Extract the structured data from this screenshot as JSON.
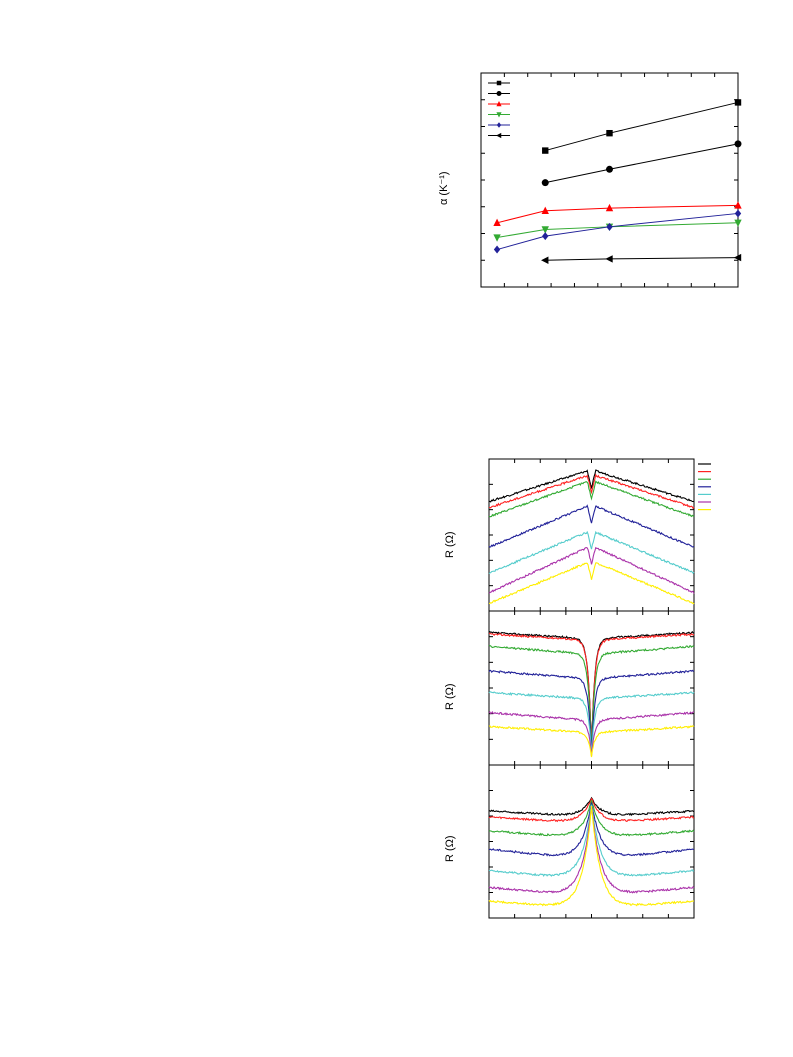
{
  "chart_data": [
    {
      "type": "line",
      "ylabel": "α (K⁻¹)",
      "xlim": [
        0,
        8
      ],
      "ylim": [
        0,
        8
      ],
      "grid": false,
      "legend": {
        "placement": "top-left"
      },
      "series": [
        {
          "marker": "square",
          "color": "#000000",
          "x": [
            2,
            4,
            8
          ],
          "y": [
            5.1,
            5.75,
            6.9
          ]
        },
        {
          "marker": "circle",
          "color": "#000000",
          "x": [
            2,
            4,
            8
          ],
          "y": [
            3.9,
            4.4,
            5.35
          ]
        },
        {
          "marker": "triangle-up",
          "color": "#ff0000",
          "x": [
            0.5,
            2,
            4,
            8
          ],
          "y": [
            2.4,
            2.85,
            2.95,
            3.05
          ]
        },
        {
          "marker": "triangle-down",
          "color": "#33aa33",
          "x": [
            0.5,
            2,
            4,
            8
          ],
          "y": [
            1.85,
            2.15,
            2.25,
            2.4
          ]
        },
        {
          "marker": "diamond",
          "color": "#222299",
          "x": [
            0.5,
            2,
            4,
            8
          ],
          "y": [
            1.4,
            1.9,
            2.25,
            2.75
          ]
        },
        {
          "marker": "triangle-left",
          "color": "#000000",
          "x": [
            2,
            4,
            8
          ],
          "y": [
            1.0,
            1.05,
            1.1
          ]
        }
      ]
    },
    {
      "type": "line",
      "ylabel": "R (Ω)",
      "shape": "cusp",
      "xlim": [
        -1,
        1
      ],
      "ylim": [
        0,
        1
      ],
      "grid": false,
      "legend": {
        "placement": "top-right"
      },
      "series": [
        {
          "color": "#000000",
          "base": 0.72,
          "peak": 0.93,
          "dip": 0.05
        },
        {
          "color": "#ff2222",
          "base": 0.68,
          "peak": 0.9,
          "dip": 0.05
        },
        {
          "color": "#33aa33",
          "base": 0.62,
          "peak": 0.86,
          "dip": 0.05
        },
        {
          "color": "#222299",
          "base": 0.42,
          "peak": 0.7,
          "dip": 0.05
        },
        {
          "color": "#55cccc",
          "base": 0.25,
          "peak": 0.53,
          "dip": 0.05
        },
        {
          "color": "#aa33aa",
          "base": 0.12,
          "peak": 0.43,
          "dip": 0.05
        },
        {
          "color": "#ffee00",
          "base": 0.05,
          "peak": 0.33,
          "dip": 0.05
        }
      ]
    },
    {
      "type": "line",
      "ylabel": "R (Ω)",
      "shape": "dip",
      "xlim": [
        -1,
        1
      ],
      "ylim": [
        0,
        1
      ],
      "grid": false,
      "series": [
        {
          "color": "#000000",
          "base": 0.82,
          "edge": 0.86,
          "min": 0.05
        },
        {
          "color": "#ff2222",
          "base": 0.81,
          "edge": 0.85,
          "min": 0.05
        },
        {
          "color": "#33aa33",
          "base": 0.72,
          "edge": 0.77,
          "min": 0.05
        },
        {
          "color": "#222299",
          "base": 0.56,
          "edge": 0.61,
          "min": 0.05
        },
        {
          "color": "#55cccc",
          "base": 0.43,
          "edge": 0.47,
          "min": 0.05
        },
        {
          "color": "#aa33aa",
          "base": 0.29,
          "edge": 0.34,
          "min": 0.05
        },
        {
          "color": "#ffee00",
          "base": 0.21,
          "edge": 0.25,
          "min": 0.05
        }
      ]
    },
    {
      "type": "line",
      "ylabel": "R (Ω)",
      "shape": "peak",
      "xlim": [
        -1,
        1
      ],
      "ylim": [
        0,
        1
      ],
      "grid": false,
      "series": [
        {
          "color": "#000000",
          "base": 0.66,
          "edge": 0.7,
          "peak": 0.8
        },
        {
          "color": "#ff2222",
          "base": 0.62,
          "edge": 0.66,
          "peak": 0.8
        },
        {
          "color": "#33aa33",
          "base": 0.52,
          "edge": 0.57,
          "peak": 0.8
        },
        {
          "color": "#222299",
          "base": 0.38,
          "edge": 0.45,
          "peak": 0.8
        },
        {
          "color": "#55cccc",
          "base": 0.25,
          "edge": 0.31,
          "peak": 0.8
        },
        {
          "color": "#aa33aa",
          "base": 0.14,
          "edge": 0.2,
          "peak": 0.8
        },
        {
          "color": "#ffee00",
          "base": 0.06,
          "edge": 0.11,
          "peak": 0.8
        }
      ]
    }
  ]
}
